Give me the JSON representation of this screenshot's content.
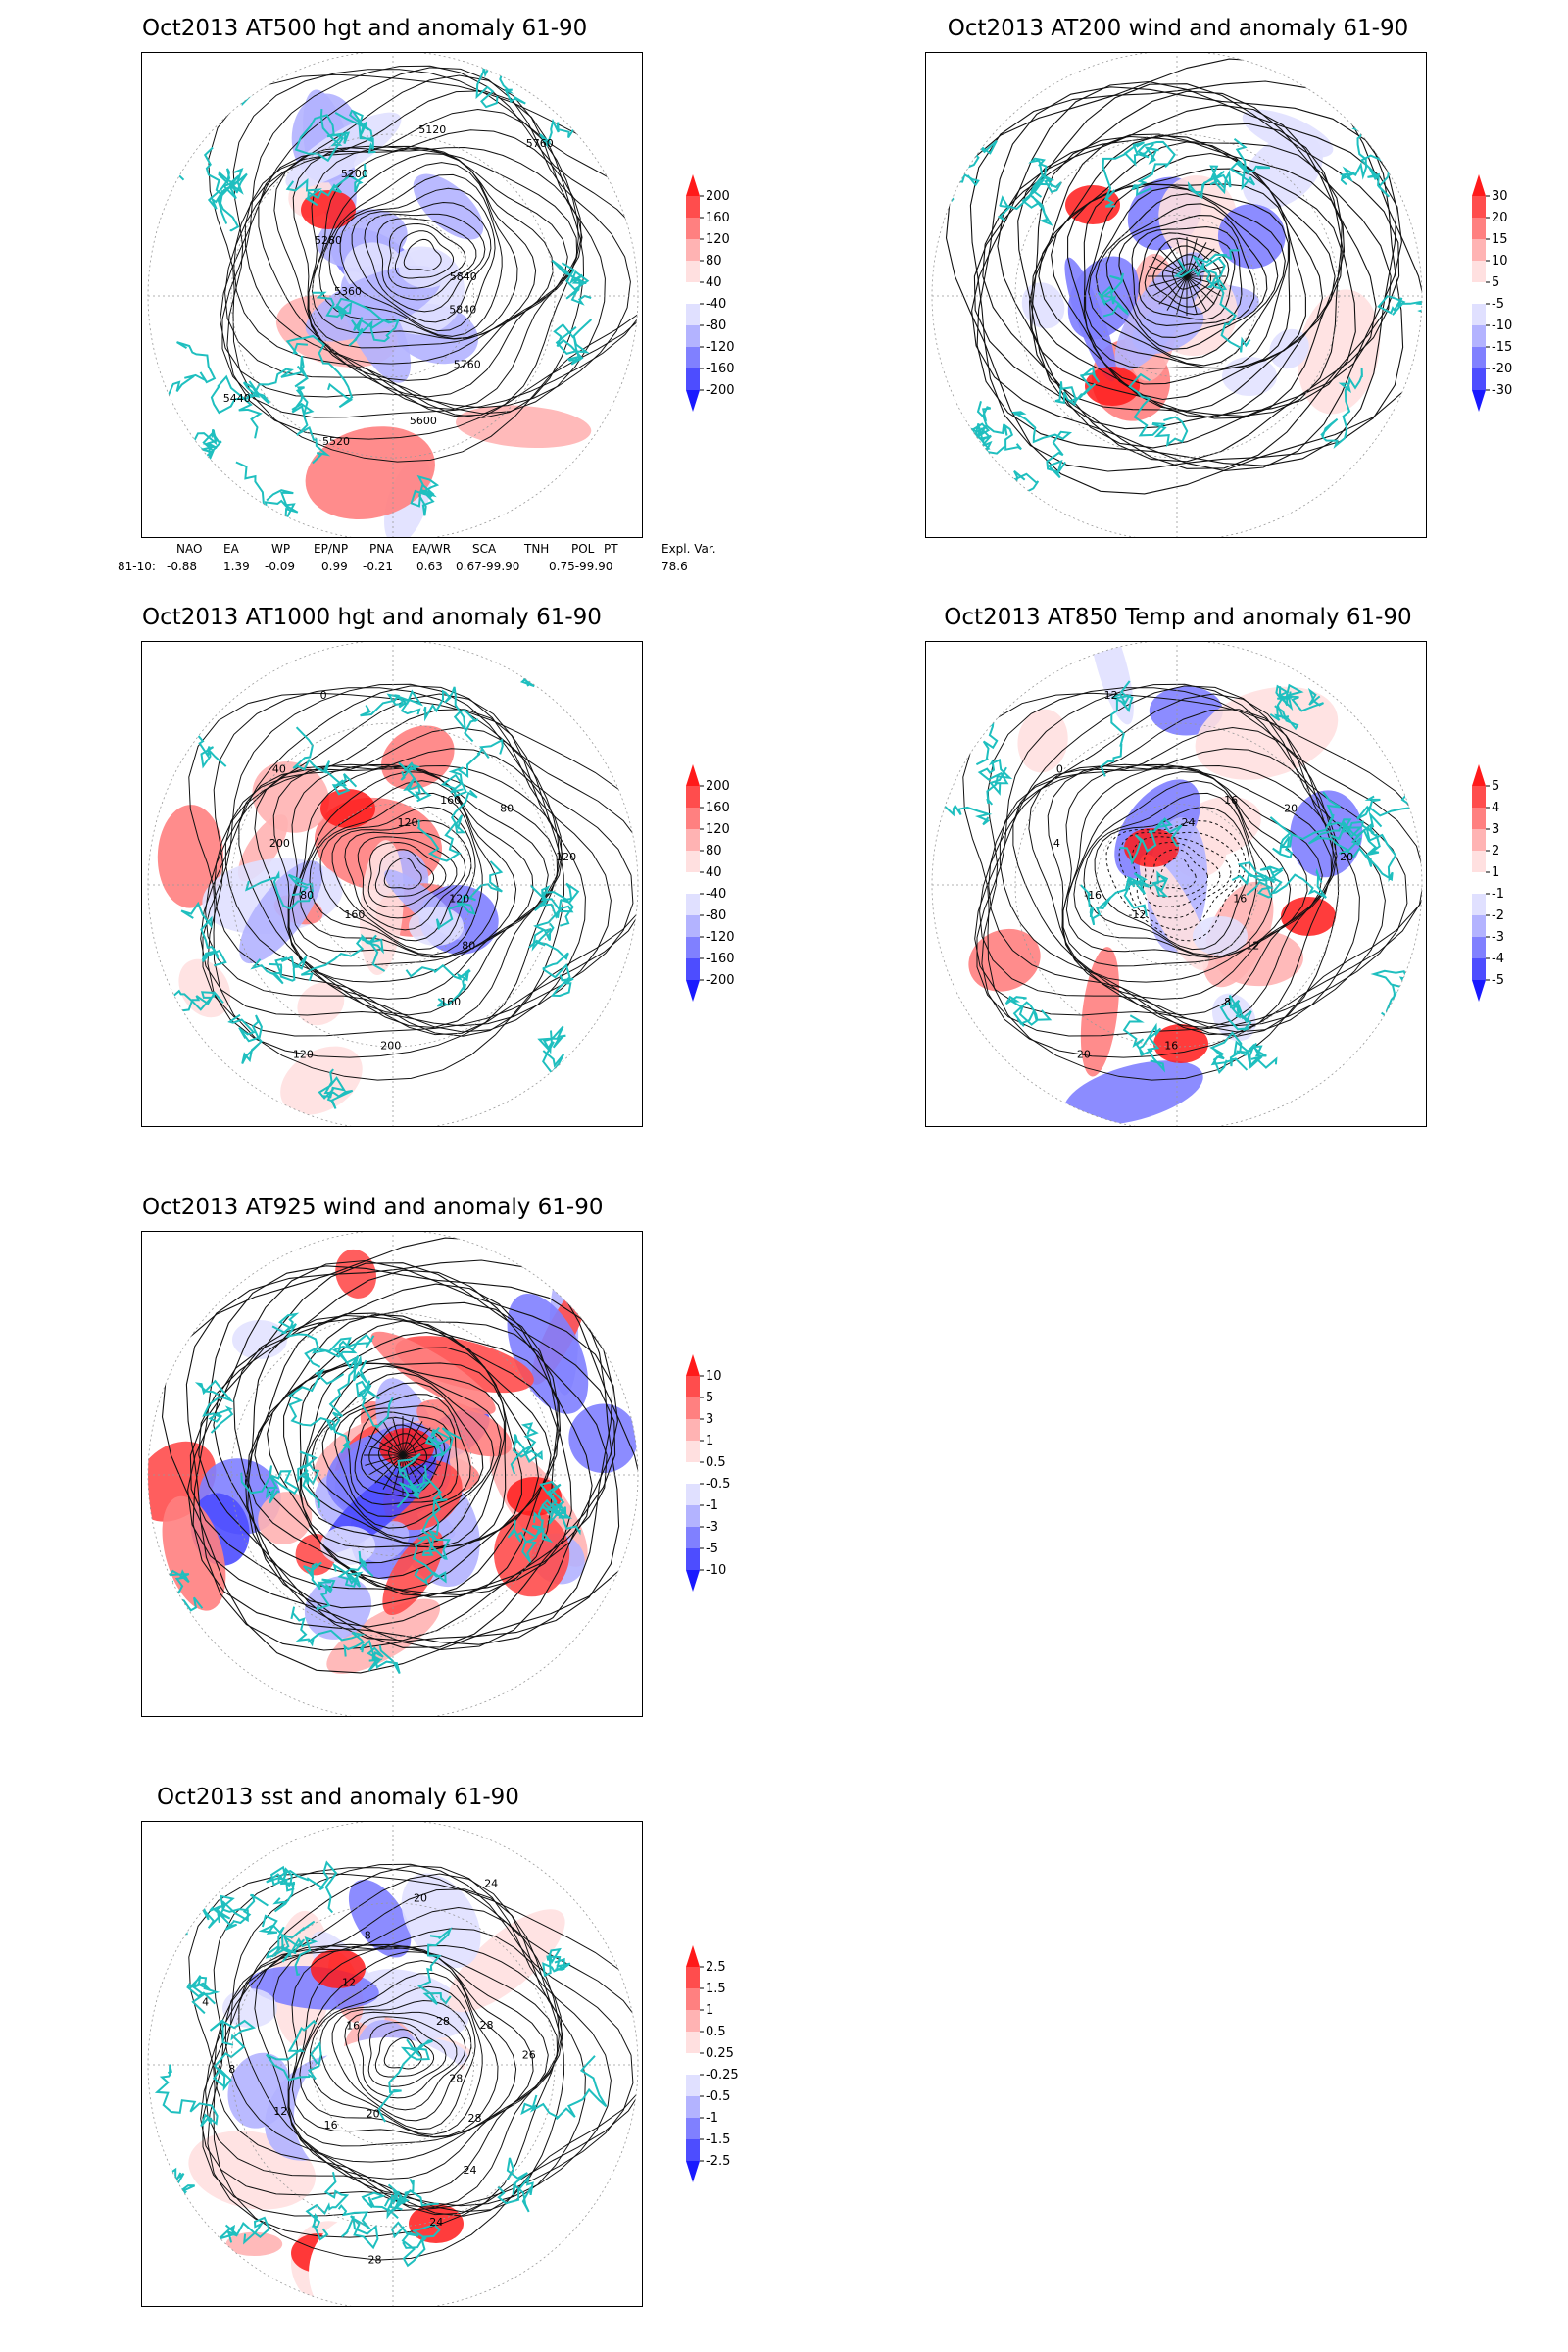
{
  "panels": [
    {
      "id": "at500",
      "title": "Oct2013 AT500 hgt and anomaly 61-90",
      "colorbar": [
        "200",
        "160",
        "120",
        "80",
        "40",
        "-40",
        "-80",
        "-120",
        "-160",
        "-200"
      ],
      "contour_labels": [
        "5840",
        "5760",
        "5600",
        "5520",
        "5440",
        "5360",
        "5280",
        "5200",
        "5120",
        "5760",
        "5840"
      ]
    },
    {
      "id": "at200",
      "title": "Oct2013 AT200 wind and anomaly 61-90",
      "colorbar": [
        "30",
        "20",
        "15",
        "10",
        "5",
        "-5",
        "-10",
        "-15",
        "-20",
        "-30"
      ],
      "contour_labels": []
    },
    {
      "id": "at1000",
      "title": "Oct2013 AT1000 hgt and anomaly 61-90",
      "colorbar": [
        "200",
        "160",
        "120",
        "80",
        "40",
        "-40",
        "-80",
        "-120",
        "-160",
        "-200"
      ],
      "contour_labels": [
        "120",
        "80",
        "160",
        "200",
        "120",
        "160",
        "80",
        "200",
        "40",
        "0",
        "120",
        "160",
        "80",
        "120"
      ]
    },
    {
      "id": "at850",
      "title": "Oct2013 AT850 Temp and anomaly 61-90",
      "colorbar": [
        "5",
        "4",
        "3",
        "2",
        "1",
        "-1",
        "-2",
        "-3",
        "-4",
        "-5"
      ],
      "contour_labels": [
        "16",
        "12",
        "8",
        "16",
        "20",
        "-12",
        "-16",
        "4",
        "0",
        "12",
        "24",
        "16",
        "20",
        "20"
      ]
    },
    {
      "id": "at925",
      "title": "Oct2013 AT925 wind and anomaly 61-90",
      "colorbar": [
        "10",
        "5",
        "3",
        "1",
        "0.5",
        "-0.5",
        "-1",
        "-3",
        "-5",
        "-10"
      ],
      "contour_labels": []
    },
    {
      "id": "sst",
      "title": "Oct2013 sst and anomaly 61-90",
      "colorbar": [
        "2.5",
        "1.5",
        "1",
        "0.5",
        "0.25",
        "-0.25",
        "-0.5",
        "-1",
        "-1.5",
        "-2.5"
      ],
      "contour_labels": [
        "28",
        "28",
        "24",
        "24",
        "28",
        "20",
        "16",
        "12",
        "8",
        "4",
        "16",
        "12",
        "8",
        "20",
        "24",
        "28",
        "28",
        "26"
      ]
    }
  ],
  "teleconnection": {
    "headers": [
      "NAO",
      "EA",
      "WP",
      "EP/NP",
      "PNA",
      "EA/WR",
      "SCA",
      "TNH",
      "POL",
      "PT",
      "Expl. Var."
    ],
    "row_label": "81-10:",
    "values": [
      "-0.88",
      "1.39",
      "-0.09",
      "0.99",
      "-0.21",
      "0.63",
      "0.67-99.90",
      "",
      "0.75-99.90",
      "",
      "78.6"
    ]
  },
  "colors": {
    "positive": [
      "#ff1a1a",
      "#ff4d4d",
      "#ff8080",
      "#ffb3b3",
      "#ffe0e0"
    ],
    "negative": [
      "#e0e0ff",
      "#b3b3ff",
      "#8080ff",
      "#4d4dff",
      "#1a1aff"
    ],
    "coast": "#1fbfbf"
  }
}
